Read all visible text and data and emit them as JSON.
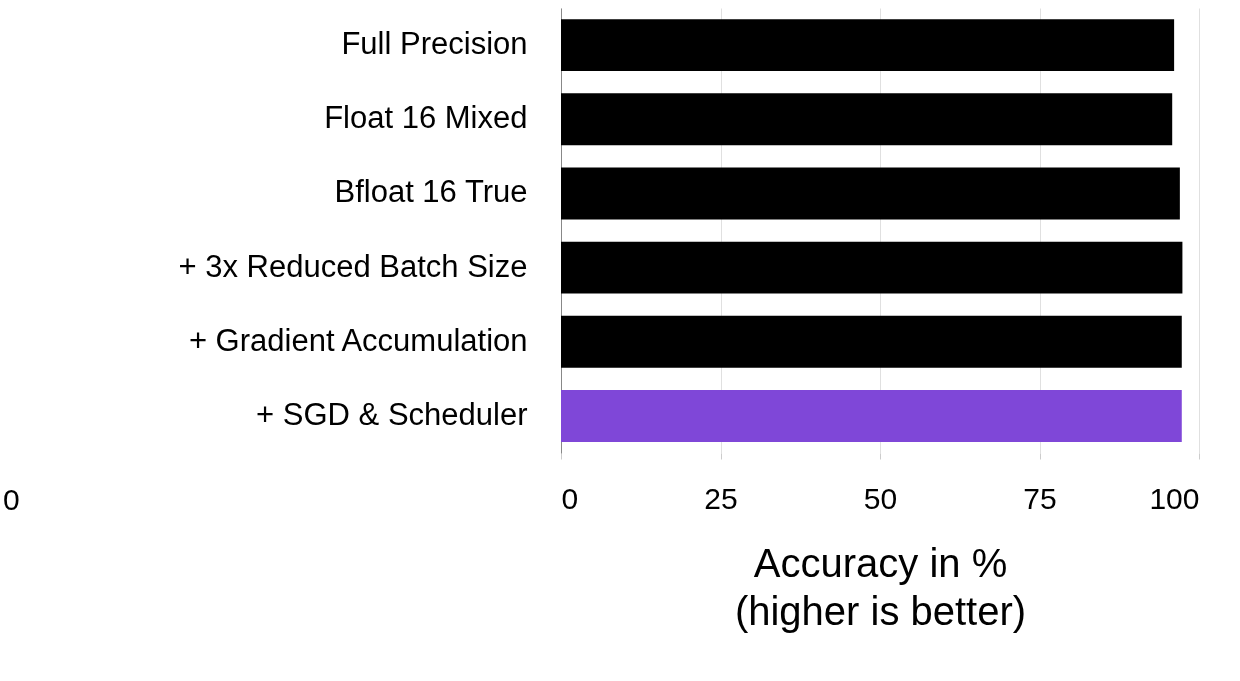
{
  "chart_data": {
    "type": "bar",
    "orientation": "horizontal",
    "xlabel": "Accuracy in %\n(higher is better)",
    "categories": [
      "Full Precision",
      "Float 16 Mixed",
      "Bfloat 16 True",
      "+ 3x Reduced Batch Size",
      "+ Gradient Accumulation",
      "+ SGD & Scheduler"
    ],
    "values": [
      96.1,
      95.8,
      97.0,
      97.4,
      97.3,
      97.3
    ],
    "colors": [
      "#000000",
      "#000000",
      "#000000",
      "#000000",
      "#000000",
      "#7f47d8"
    ],
    "xlim": [
      0,
      100
    ],
    "xticks": [
      0,
      25,
      50,
      75,
      100
    ],
    "grid": "x",
    "annotations": [
      "0"
    ]
  }
}
